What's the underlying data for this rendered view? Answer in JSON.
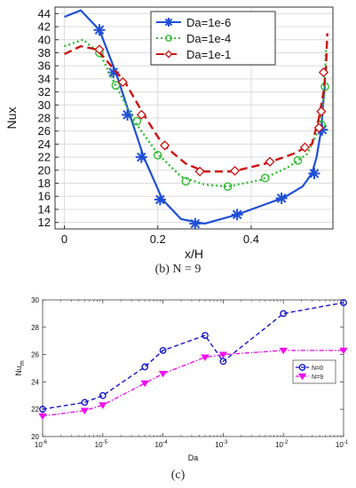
{
  "captions": {
    "top": "(b) N = 9",
    "bottom": "(c)"
  },
  "colors": {
    "dash": "#1f4fd6",
    "dot": "#33bb33",
    "red": "#cc1111",
    "magenta": "#ee11ee",
    "blue2": "#1515cc"
  },
  "chart_data": [
    {
      "type": "line",
      "xlabel": "x/H",
      "ylabel": "Nux",
      "xlim": [
        -0.02,
        0.575
      ],
      "ylim": [
        11,
        45
      ],
      "xticks": [
        0,
        0.2,
        0.4
      ],
      "xtick_labels": [
        "0",
        "0.2",
        "0.4"
      ],
      "yticks": [
        12,
        14,
        16,
        18,
        20,
        22,
        24,
        26,
        28,
        30,
        32,
        34,
        36,
        38,
        40,
        42,
        44
      ],
      "ytick_labels": [
        "12",
        "14",
        "16",
        "18",
        "20",
        "22",
        "24",
        "26",
        "28",
        "30",
        "32",
        "34",
        "36",
        "38",
        "40",
        "42",
        "44"
      ],
      "legend_position": "top-right",
      "series": [
        {
          "name": "Da=1e-6",
          "color": "#1f4fd6",
          "style": "solid",
          "marker": "star",
          "x": [
            0.0,
            0.035,
            0.075,
            0.11,
            0.14,
            0.17,
            0.21,
            0.25,
            0.3,
            0.37,
            0.42,
            0.47,
            0.51,
            0.53,
            0.54,
            0.55,
            0.555,
            0.558
          ],
          "y": [
            43.5,
            44.5,
            41.5,
            35.0,
            28.5,
            22.0,
            15.5,
            12.5,
            11.8,
            13.2,
            14.5,
            15.8,
            17.5,
            19.5,
            22.0,
            26.2,
            31.0,
            33.0
          ],
          "marker_x": [
            0.075,
            0.105,
            0.135,
            0.165,
            0.205,
            0.28,
            0.37,
            0.465,
            0.535,
            0.552
          ],
          "marker_y": [
            41.5,
            35.0,
            28.5,
            22.0,
            15.5,
            11.8,
            13.2,
            15.7,
            19.5,
            26.2
          ]
        },
        {
          "name": "Da=1e-4",
          "color": "#33bb33",
          "style": "dotted",
          "marker": "circle",
          "x": [
            0.0,
            0.04,
            0.075,
            0.11,
            0.15,
            0.2,
            0.25,
            0.3,
            0.35,
            0.42,
            0.48,
            0.52,
            0.54,
            0.55,
            0.557,
            0.56
          ],
          "y": [
            39.0,
            40.0,
            38.0,
            33.0,
            27.5,
            22.5,
            19.0,
            17.8,
            17.5,
            18.5,
            20.5,
            22.5,
            25.5,
            28.0,
            32.0,
            38.5
          ],
          "marker_x": [
            0.075,
            0.11,
            0.155,
            0.2,
            0.26,
            0.35,
            0.43,
            0.5,
            0.55,
            0.558
          ],
          "marker_y": [
            38.0,
            33.0,
            27.5,
            22.3,
            18.3,
            17.5,
            18.8,
            21.5,
            27.0,
            32.8
          ]
        },
        {
          "name": "Da=1e-1",
          "color": "#cc1111",
          "style": "dashed",
          "marker": "diamond",
          "x": [
            0.0,
            0.035,
            0.07,
            0.1,
            0.13,
            0.17,
            0.21,
            0.26,
            0.3,
            0.36,
            0.43,
            0.49,
            0.53,
            0.545,
            0.555,
            0.56,
            0.563
          ],
          "y": [
            37.8,
            39.0,
            38.5,
            36.0,
            33.5,
            28.5,
            24.0,
            21.0,
            19.8,
            19.8,
            21.0,
            22.5,
            24.0,
            28.0,
            32.0,
            35.5,
            41.0
          ],
          "marker_x": [
            0.075,
            0.125,
            0.165,
            0.215,
            0.29,
            0.365,
            0.44,
            0.515,
            0.545,
            0.55,
            0.555
          ],
          "marker_y": [
            38.5,
            33.5,
            28.5,
            23.8,
            19.8,
            19.9,
            21.3,
            23.5,
            26.5,
            29.0,
            35.0
          ]
        }
      ]
    },
    {
      "type": "line",
      "xlabel": "Da",
      "ylabel": "Nu",
      "ylabel_sub": "m",
      "xscale": "log",
      "xlim": [
        1e-06,
        0.1
      ],
      "ylim": [
        20,
        30
      ],
      "xticks": [
        1e-06,
        1e-05,
        0.0001,
        0.001,
        0.01,
        0.1
      ],
      "xtick_base": [
        "10",
        "10",
        "10",
        "10",
        "10",
        "10"
      ],
      "xtick_exp": [
        "-6",
        "-5",
        "-4",
        "-3",
        "-2",
        "-1"
      ],
      "yticks": [
        20,
        22,
        24,
        26,
        28,
        30
      ],
      "ytick_labels": [
        "20",
        "22",
        "24",
        "26",
        "28",
        "30"
      ],
      "legend_position": "right",
      "series": [
        {
          "name": "N=0",
          "color": "#1515cc",
          "style": "dashed",
          "marker": "circle",
          "x": [
            1e-06,
            5e-06,
            1e-05,
            5e-05,
            0.0001,
            0.0005,
            0.001,
            0.01,
            0.1
          ],
          "y": [
            22.0,
            22.5,
            23.0,
            25.1,
            26.3,
            27.4,
            25.5,
            29.0,
            29.8
          ]
        },
        {
          "name": "N=9",
          "color": "#ee11ee",
          "style": "dashdot",
          "marker": "triangle-down",
          "x": [
            1e-06,
            5e-06,
            1e-05,
            5e-05,
            0.0001,
            0.0005,
            0.001,
            0.01,
            0.1
          ],
          "y": [
            21.5,
            21.9,
            22.3,
            23.9,
            24.6,
            25.8,
            26.0,
            26.3,
            26.3
          ]
        }
      ]
    }
  ]
}
